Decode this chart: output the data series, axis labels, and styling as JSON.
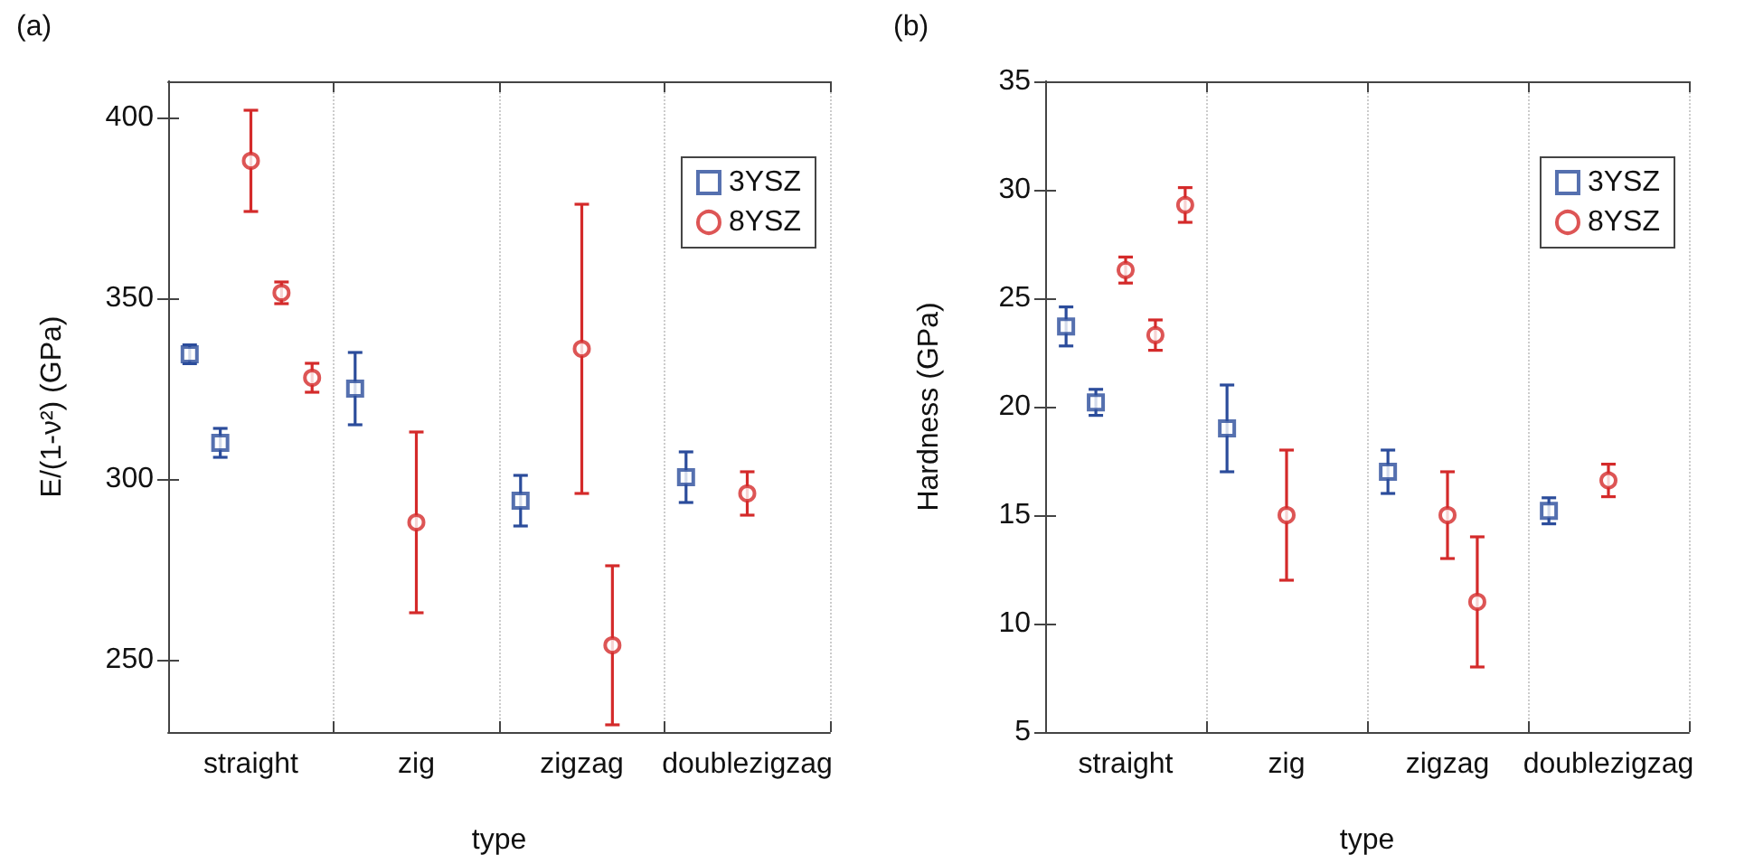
{
  "chart_data": [
    {
      "type": "scatter",
      "title": "(a)",
      "xlabel": "type",
      "ylabel": "E/(1-ν²) (GPa)",
      "categories": [
        "straight",
        "zig",
        "zigzag",
        "doublezigzag"
      ],
      "ylim": [
        230,
        410
      ],
      "yticks": [
        250,
        300,
        350,
        400
      ],
      "grid": "x",
      "legend": "top right",
      "series": [
        {
          "name": "3YSZ",
          "color": "#2b4c9b",
          "marker": "square",
          "values": [
            334.5,
            325,
            294,
            300.5
          ],
          "errors": [
            2.6,
            10,
            7,
            7
          ]
        },
        {
          "color": "#2b4c9b",
          "marker": "square",
          "values": [
            310,
            null,
            null,
            null
          ],
          "errors": [
            4,
            null,
            null,
            null
          ]
        },
        {
          "name": "8YSZ",
          "color": "#d42a2a",
          "marker": "circle",
          "values": [
            388,
            288,
            336,
            296
          ],
          "errors": [
            14,
            25,
            40,
            6
          ]
        },
        {
          "color": "#d42a2a",
          "marker": "circle",
          "values": [
            351.5,
            null,
            254,
            null
          ],
          "errors": [
            3,
            null,
            22,
            null
          ]
        },
        {
          "color": "#d42a2a",
          "marker": "circle",
          "values": [
            328,
            null,
            null,
            null
          ],
          "errors": [
            4,
            null,
            null,
            null
          ]
        }
      ]
    },
    {
      "type": "scatter",
      "title": "(b)",
      "xlabel": "type",
      "ylabel": "Hardness (GPa)",
      "categories": [
        "straight",
        "zig",
        "zigzag",
        "doublezigzag"
      ],
      "ylim": [
        5,
        35
      ],
      "yticks": [
        5,
        10,
        15,
        20,
        25,
        30,
        35
      ],
      "grid": "x",
      "legend": "top right",
      "series": [
        {
          "name": "3YSZ",
          "color": "#2b4c9b",
          "marker": "square",
          "values": [
            23.7,
            19,
            17,
            15.2
          ],
          "errors": [
            0.9,
            2,
            1,
            0.6
          ]
        },
        {
          "color": "#2b4c9b",
          "marker": "square",
          "values": [
            20.2,
            null,
            null,
            null
          ],
          "errors": [
            0.6,
            null,
            null,
            null
          ]
        },
        {
          "name": "8YSZ",
          "color": "#d42a2a",
          "marker": "circle",
          "values": [
            26.3,
            15,
            15,
            16.6
          ],
          "errors": [
            0.6,
            3,
            2,
            0.75
          ]
        },
        {
          "color": "#d42a2a",
          "marker": "circle",
          "values": [
            23.3,
            null,
            11,
            null
          ],
          "errors": [
            0.7,
            null,
            3,
            null
          ]
        },
        {
          "color": "#d42a2a",
          "marker": "circle",
          "values": [
            29.3,
            null,
            null,
            null
          ],
          "errors": [
            0.8,
            null,
            null,
            null
          ]
        }
      ]
    }
  ]
}
